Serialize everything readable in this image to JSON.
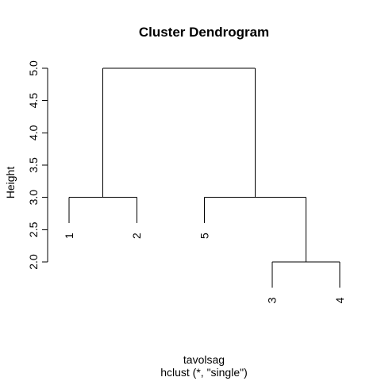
{
  "chart_data": {
    "type": "dendrogram",
    "title": "Cluster Dendrogram",
    "xlabel": "tavolsag",
    "sublabel": "hclust (*, \"single\")",
    "ylabel": "Height",
    "ylim": [
      2.0,
      5.0
    ],
    "yticks": [
      "2.0",
      "2.5",
      "3.0",
      "3.5",
      "4.0",
      "4.5",
      "5.0"
    ],
    "leaf_order": [
      "1",
      "2",
      "5",
      "3",
      "4"
    ],
    "merges": [
      {
        "left": "3",
        "right": "4",
        "height": 2.0
      },
      {
        "left": "1",
        "right": "2",
        "height": 3.0
      },
      {
        "left": "5",
        "right": "3+4",
        "height": 3.0
      },
      {
        "left": "1+2",
        "right": "5+3+4",
        "height": 5.0
      }
    ],
    "grid": false,
    "legend": "none"
  }
}
